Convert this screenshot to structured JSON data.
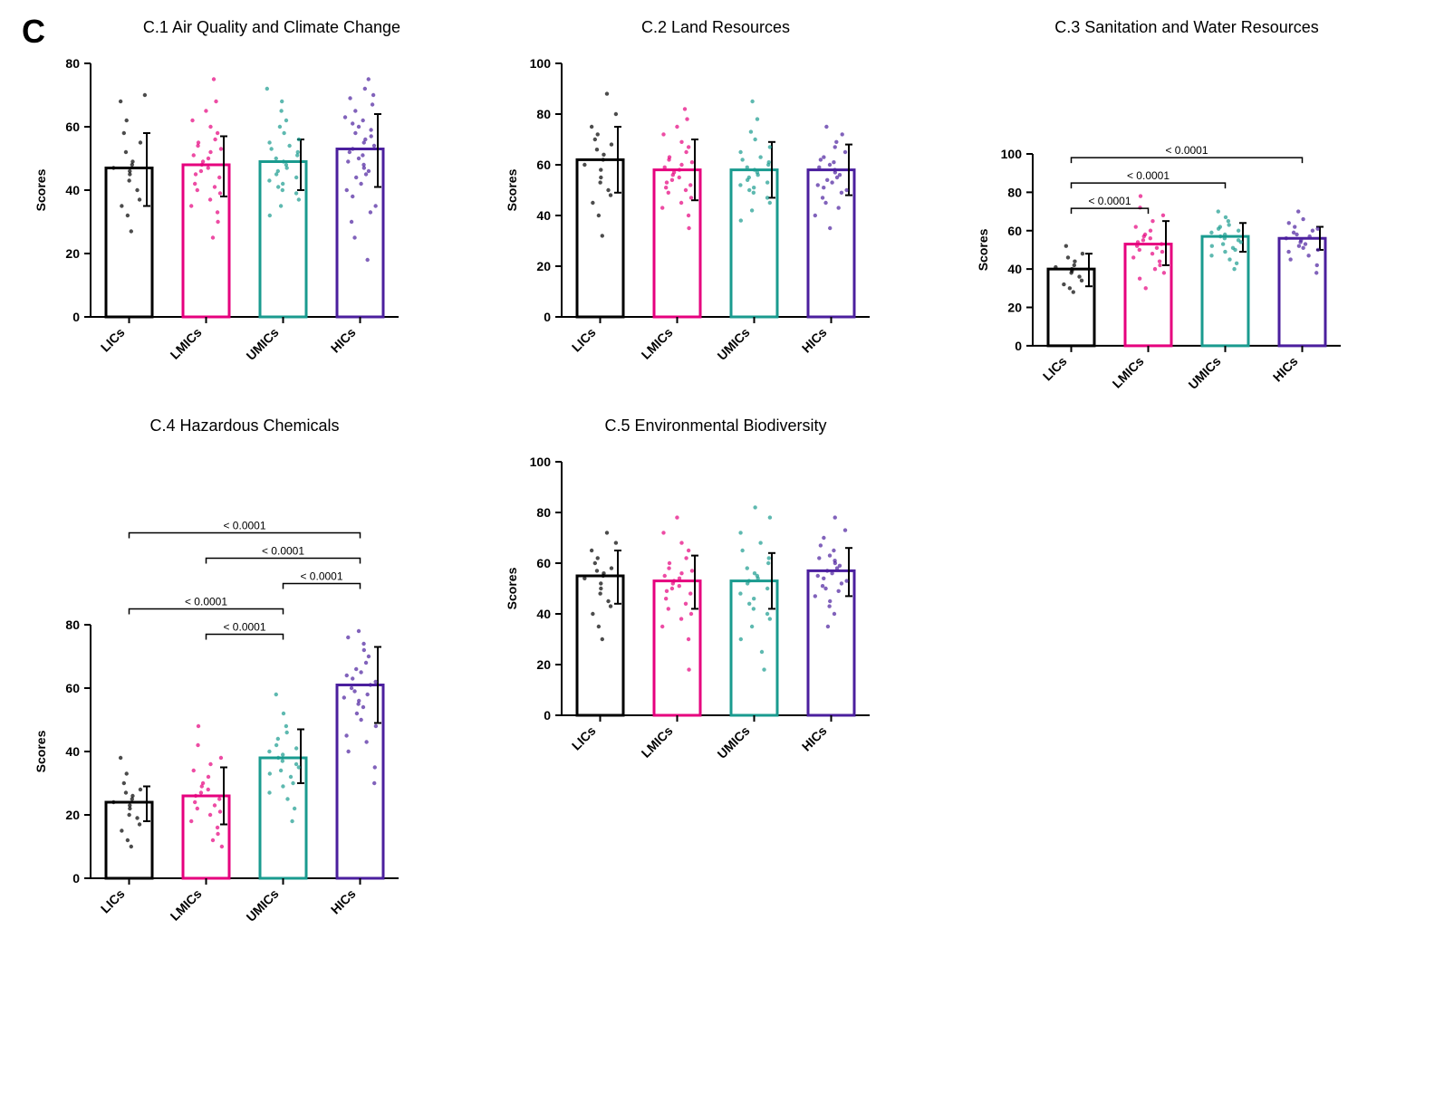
{
  "figure_label": "C",
  "common": {
    "categories": [
      "LICs",
      "LMICs",
      "UMICs",
      "HICs"
    ],
    "ylabel": "Scores",
    "bar_width": 0.6,
    "error_cap_width": 8,
    "scatter_radius": 2.2,
    "bar_stroke_width": 3,
    "axis_color": "#000000",
    "colors": {
      "LICs": {
        "stroke": "#000000",
        "fill": "#ffffff",
        "dot": "#000000"
      },
      "LMICs": {
        "stroke": "#e6007e",
        "fill": "#ffffff",
        "dot": "#e6007e"
      },
      "UMICs": {
        "stroke": "#1a9b8f",
        "fill": "#ffffff",
        "dot": "#1a9b8f"
      },
      "HICs": {
        "stroke": "#4b1f9e",
        "fill": "#ffffff",
        "dot": "#4b1f9e"
      }
    },
    "title_fontsize": 18,
    "label_rotation_deg": -45,
    "background_color": "#ffffff"
  },
  "panels": {
    "c1": {
      "title": "C.1 Air Quality and Climate Change",
      "ylim": [
        0,
        80
      ],
      "ytick_step": 20,
      "plot_top_pad": 20,
      "bars": {
        "LICs": {
          "mean": 47,
          "err_lo": 35,
          "err_hi": 58,
          "points": [
            27,
            32,
            35,
            37,
            40,
            43,
            45,
            46,
            47,
            48,
            49,
            52,
            55,
            58,
            62,
            68,
            70
          ]
        },
        "LMICs": {
          "mean": 48,
          "err_lo": 38,
          "err_hi": 57,
          "points": [
            25,
            30,
            33,
            35,
            37,
            39,
            40,
            41,
            42,
            44,
            45,
            46,
            47,
            48,
            49,
            50,
            51,
            52,
            53,
            54,
            55,
            56,
            58,
            60,
            62,
            65,
            68,
            75
          ]
        },
        "UMICs": {
          "mean": 49,
          "err_lo": 40,
          "err_hi": 56,
          "points": [
            32,
            35,
            37,
            39,
            40,
            41,
            42,
            43,
            44,
            45,
            46,
            47,
            48,
            49,
            50,
            51,
            52,
            53,
            54,
            55,
            56,
            58,
            60,
            62,
            65,
            68,
            72
          ]
        },
        "HICs": {
          "mean": 53,
          "err_lo": 41,
          "err_hi": 64,
          "points": [
            18,
            25,
            30,
            33,
            35,
            38,
            40,
            42,
            44,
            45,
            46,
            47,
            48,
            49,
            50,
            51,
            52,
            53,
            54,
            55,
            56,
            57,
            58,
            59,
            60,
            61,
            62,
            63,
            65,
            67,
            69,
            70,
            72,
            75
          ]
        }
      },
      "sig": []
    },
    "c2": {
      "title": "C.2 Land Resources",
      "ylim": [
        0,
        100
      ],
      "ytick_step": 20,
      "plot_top_pad": 20,
      "bars": {
        "LICs": {
          "mean": 62,
          "err_lo": 49,
          "err_hi": 75,
          "points": [
            32,
            40,
            45,
            48,
            50,
            53,
            55,
            58,
            60,
            62,
            64,
            66,
            68,
            70,
            72,
            75,
            80,
            88
          ]
        },
        "LMICs": {
          "mean": 58,
          "err_lo": 46,
          "err_hi": 70,
          "points": [
            35,
            40,
            43,
            45,
            47,
            49,
            50,
            51,
            52,
            53,
            54,
            55,
            56,
            57,
            58,
            59,
            60,
            61,
            62,
            63,
            65,
            67,
            69,
            72,
            75,
            78,
            82
          ]
        },
        "UMICs": {
          "mean": 58,
          "err_lo": 47,
          "err_hi": 69,
          "points": [
            38,
            42,
            45,
            47,
            49,
            50,
            51,
            52,
            53,
            54,
            55,
            56,
            57,
            58,
            59,
            60,
            61,
            62,
            63,
            65,
            67,
            70,
            73,
            78,
            85
          ]
        },
        "HICs": {
          "mean": 58,
          "err_lo": 48,
          "err_hi": 68,
          "points": [
            35,
            40,
            43,
            45,
            47,
            49,
            50,
            51,
            52,
            53,
            54,
            55,
            56,
            57,
            58,
            59,
            60,
            61,
            62,
            63,
            65,
            67,
            69,
            72,
            75
          ]
        }
      },
      "sig": []
    },
    "c3": {
      "title": "C.3 Sanitation and Water Resources",
      "ylim": [
        0,
        100
      ],
      "ytick_step": 20,
      "plot_top_pad": 120,
      "bars": {
        "LICs": {
          "mean": 40,
          "err_lo": 31,
          "err_hi": 48,
          "points": [
            28,
            30,
            32,
            34,
            36,
            38,
            39,
            40,
            41,
            42,
            44,
            46,
            48,
            52
          ]
        },
        "LMICs": {
          "mean": 53,
          "err_lo": 42,
          "err_hi": 65,
          "points": [
            30,
            35,
            38,
            40,
            42,
            44,
            46,
            48,
            49,
            50,
            51,
            52,
            53,
            54,
            55,
            56,
            57,
            58,
            60,
            62,
            65,
            68,
            72,
            78
          ]
        },
        "UMICs": {
          "mean": 57,
          "err_lo": 49,
          "err_hi": 64,
          "points": [
            40,
            43,
            45,
            47,
            49,
            50,
            51,
            52,
            53,
            54,
            55,
            56,
            57,
            58,
            59,
            60,
            61,
            62,
            63,
            65,
            67,
            70
          ]
        },
        "HICs": {
          "mean": 56,
          "err_lo": 50,
          "err_hi": 62,
          "points": [
            38,
            42,
            45,
            47,
            49,
            50,
            51,
            52,
            53,
            54,
            55,
            56,
            57,
            58,
            59,
            60,
            61,
            62,
            64,
            66,
            70
          ]
        }
      },
      "sig": [
        {
          "from": 0,
          "to": 1,
          "level": 0,
          "label": "< 0.0001"
        },
        {
          "from": 0,
          "to": 2,
          "level": 1,
          "label": "< 0.0001"
        },
        {
          "from": 0,
          "to": 3,
          "level": 2,
          "label": "< 0.0001"
        }
      ]
    },
    "c4": {
      "title": "C.4 Hazardous Chemicals",
      "ylim": [
        0,
        80
      ],
      "ytick_step": 20,
      "plot_top_pad": 200,
      "bars": {
        "LICs": {
          "mean": 24,
          "err_lo": 18,
          "err_hi": 29,
          "points": [
            10,
            12,
            15,
            17,
            19,
            20,
            22,
            23,
            24,
            25,
            26,
            27,
            28,
            30,
            33,
            38
          ]
        },
        "LMICs": {
          "mean": 26,
          "err_lo": 17,
          "err_hi": 35,
          "points": [
            10,
            12,
            14,
            16,
            18,
            20,
            21,
            22,
            23,
            24,
            25,
            26,
            27,
            28,
            29,
            30,
            32,
            34,
            36,
            38,
            42,
            48
          ]
        },
        "UMICs": {
          "mean": 38,
          "err_lo": 30,
          "err_hi": 47,
          "points": [
            18,
            22,
            25,
            27,
            29,
            30,
            32,
            33,
            34,
            35,
            36,
            37,
            38,
            39,
            40,
            41,
            42,
            44,
            46,
            48,
            52,
            58
          ]
        },
        "HICs": {
          "mean": 61,
          "err_lo": 49,
          "err_hi": 73,
          "points": [
            30,
            35,
            40,
            43,
            45,
            48,
            50,
            52,
            54,
            55,
            56,
            57,
            58,
            59,
            60,
            61,
            62,
            63,
            64,
            65,
            66,
            68,
            70,
            72,
            74,
            76,
            78
          ]
        }
      },
      "sig": [
        {
          "from": 1,
          "to": 2,
          "level": 0,
          "label": "< 0.0001"
        },
        {
          "from": 0,
          "to": 2,
          "level": 1,
          "label": "< 0.0001"
        },
        {
          "from": 2,
          "to": 3,
          "level": 2,
          "label": "< 0.0001"
        },
        {
          "from": 1,
          "to": 3,
          "level": 3,
          "label": "< 0.0001"
        },
        {
          "from": 0,
          "to": 3,
          "level": 4,
          "label": "< 0.0001"
        }
      ]
    },
    "c5": {
      "title": "C.5 Environmental Biodiversity",
      "ylim": [
        0,
        100
      ],
      "ytick_step": 20,
      "plot_top_pad": 20,
      "bars": {
        "LICs": {
          "mean": 55,
          "err_lo": 44,
          "err_hi": 65,
          "points": [
            30,
            35,
            40,
            43,
            45,
            48,
            50,
            52,
            54,
            55,
            56,
            57,
            58,
            60,
            62,
            65,
            68,
            72
          ]
        },
        "LMICs": {
          "mean": 53,
          "err_lo": 42,
          "err_hi": 63,
          "points": [
            18,
            30,
            35,
            38,
            40,
            42,
            44,
            46,
            48,
            49,
            50,
            51,
            52,
            53,
            54,
            55,
            56,
            57,
            58,
            60,
            62,
            65,
            68,
            72,
            78
          ]
        },
        "UMICs": {
          "mean": 53,
          "err_lo": 42,
          "err_hi": 64,
          "points": [
            18,
            25,
            30,
            35,
            38,
            40,
            42,
            44,
            46,
            48,
            50,
            52,
            53,
            54,
            55,
            56,
            58,
            60,
            62,
            65,
            68,
            72,
            78,
            82
          ]
        },
        "HICs": {
          "mean": 57,
          "err_lo": 47,
          "err_hi": 66,
          "points": [
            35,
            40,
            43,
            45,
            47,
            49,
            50,
            51,
            52,
            53,
            54,
            55,
            56,
            57,
            58,
            59,
            60,
            61,
            62,
            63,
            65,
            67,
            70,
            73,
            78
          ]
        }
      },
      "sig": []
    }
  },
  "layout": {
    "positions": {
      "c1": {
        "row": 1,
        "col": 1
      },
      "c2": {
        "row": 1,
        "col": 2
      },
      "c3": {
        "row": 1,
        "col": 3
      },
      "c4": {
        "row": 2,
        "col": 1
      },
      "c5": {
        "row": 2,
        "col": 2
      }
    }
  }
}
